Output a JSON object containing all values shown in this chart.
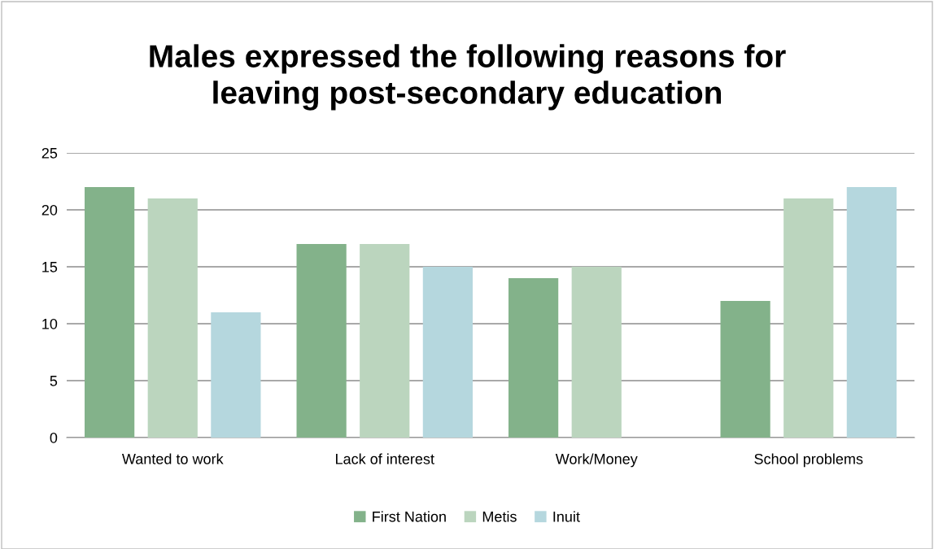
{
  "chart_data": {
    "type": "bar",
    "title": "Males expressed the following reasons for\nleaving post-secondary education",
    "categories": [
      "Wanted to work",
      "Lack of interest",
      "Work/Money",
      "School problems"
    ],
    "series": [
      {
        "name": "First Nation",
        "color": "#83b28a",
        "values": [
          22,
          17,
          14,
          12
        ]
      },
      {
        "name": "Metis",
        "color": "#bbd5be",
        "values": [
          21,
          17,
          15,
          21
        ]
      },
      {
        "name": "Inuit",
        "color": "#b5d7de",
        "values": [
          11,
          15,
          null,
          22
        ]
      }
    ],
    "ylim": [
      0,
      25
    ],
    "yticks": [
      0,
      5,
      10,
      15,
      20,
      25
    ],
    "grid": "y",
    "legend": "bottom"
  }
}
